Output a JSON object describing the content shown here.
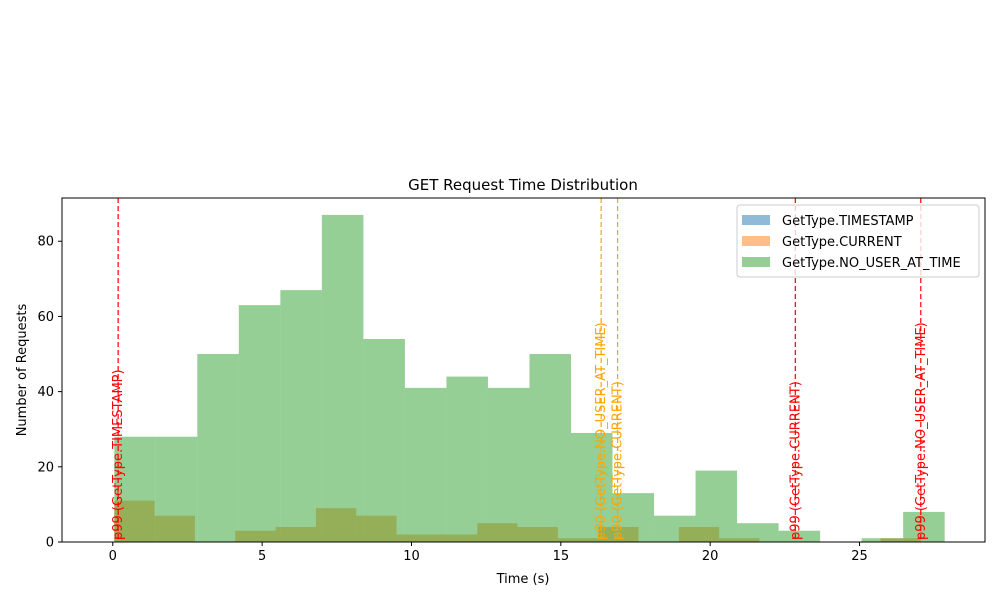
{
  "chart_data": {
    "type": "bar",
    "title": "GET Request Time Distribution",
    "xlabel": "Time (s)",
    "ylabel": "Number of Requests",
    "xlim": [
      -1.7,
      29.2
    ],
    "ylim": [
      0,
      91.5
    ],
    "xticks": [
      0,
      5,
      10,
      15,
      20,
      25
    ],
    "yticks": [
      0,
      20,
      40,
      60,
      80
    ],
    "grid": false,
    "legend_position": "top-right",
    "series": [
      {
        "name": "GetType.TIMESTAMP",
        "color": "#1f77b4",
        "opacity": 0.5,
        "bins": []
      },
      {
        "name": "GetType.CURRENT",
        "color": "#ff7f0e",
        "opacity": 0.5,
        "bins": [
          {
            "x0": 0.05,
            "x1": 1.4,
            "count": 11
          },
          {
            "x0": 1.4,
            "x1": 2.75,
            "count": 7
          },
          {
            "x0": 4.1,
            "x1": 5.45,
            "count": 3
          },
          {
            "x0": 5.45,
            "x1": 6.8,
            "count": 4
          },
          {
            "x0": 6.8,
            "x1": 8.15,
            "count": 9
          },
          {
            "x0": 8.15,
            "x1": 9.5,
            "count": 7
          },
          {
            "x0": 9.5,
            "x1": 10.85,
            "count": 2
          },
          {
            "x0": 10.85,
            "x1": 12.2,
            "count": 2
          },
          {
            "x0": 12.2,
            "x1": 13.55,
            "count": 5
          },
          {
            "x0": 13.55,
            "x1": 14.9,
            "count": 4
          },
          {
            "x0": 14.9,
            "x1": 16.25,
            "count": 1
          },
          {
            "x0": 16.25,
            "x1": 17.6,
            "count": 4
          },
          {
            "x0": 18.95,
            "x1": 20.3,
            "count": 4
          },
          {
            "x0": 20.3,
            "x1": 21.65,
            "count": 1
          },
          {
            "x0": 25.7,
            "x1": 27.05,
            "count": 1
          }
        ]
      },
      {
        "name": "GetType.NO_USER_AT_TIME",
        "color": "#2ca02c",
        "opacity": 0.5,
        "bins": [
          {
            "x0": 0.05,
            "x1": 1.44,
            "count": 28
          },
          {
            "x0": 1.44,
            "x1": 2.83,
            "count": 28
          },
          {
            "x0": 2.83,
            "x1": 4.22,
            "count": 50
          },
          {
            "x0": 4.22,
            "x1": 5.61,
            "count": 63
          },
          {
            "x0": 5.61,
            "x1": 7.0,
            "count": 67
          },
          {
            "x0": 7.0,
            "x1": 8.39,
            "count": 87
          },
          {
            "x0": 8.39,
            "x1": 9.78,
            "count": 54
          },
          {
            "x0": 9.78,
            "x1": 11.17,
            "count": 41
          },
          {
            "x0": 11.17,
            "x1": 12.56,
            "count": 44
          },
          {
            "x0": 12.56,
            "x1": 13.95,
            "count": 41
          },
          {
            "x0": 13.95,
            "x1": 15.34,
            "count": 50
          },
          {
            "x0": 15.34,
            "x1": 16.73,
            "count": 29
          },
          {
            "x0": 16.73,
            "x1": 18.12,
            "count": 13
          },
          {
            "x0": 18.12,
            "x1": 19.51,
            "count": 7
          },
          {
            "x0": 19.51,
            "x1": 20.9,
            "count": 19
          },
          {
            "x0": 20.9,
            "x1": 22.29,
            "count": 5
          },
          {
            "x0": 22.29,
            "x1": 23.68,
            "count": 3
          },
          {
            "x0": 25.07,
            "x1": 26.46,
            "count": 1
          },
          {
            "x0": 26.46,
            "x1": 27.85,
            "count": 8
          }
        ]
      }
    ],
    "reference_lines": [
      {
        "x": 0.18,
        "label": "p99 (GetType.TIMESTAMP)",
        "color": "#ff0000"
      },
      {
        "x": 16.9,
        "label": "p90 (GetType.CURRENT)",
        "color": "#ffa500"
      },
      {
        "x": 22.85,
        "label": "p99 (GetType.CURRENT)",
        "color": "#ff0000"
      },
      {
        "x": 16.35,
        "label": "p90 (GetType.NO_USER_AT_TIME)",
        "color": "#ffa500"
      },
      {
        "x": 27.05,
        "label": "p99 (GetType.NO_USER_AT_TIME)",
        "color": "#ff0000"
      }
    ]
  }
}
